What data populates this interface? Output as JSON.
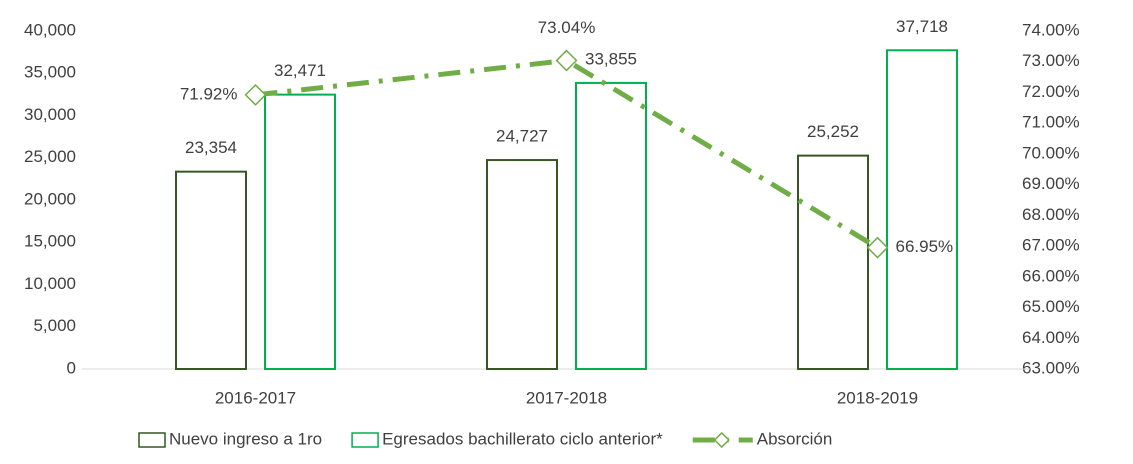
{
  "chart_data": {
    "type": "bar_line",
    "categories": [
      "2016-2017",
      "2017-2018",
      "2018-2019"
    ],
    "series": [
      {
        "name": "Nuevo ingreso a 1ro",
        "color": "#375623",
        "values": [
          23354,
          24727,
          25252
        ],
        "value_labels": [
          "23,354",
          "24,727",
          "25,252"
        ]
      },
      {
        "name": "Egresados bachillerato ciclo anterior*",
        "color": "#00b050",
        "values": [
          32471,
          33855,
          37718
        ],
        "value_labels": [
          "32,471",
          "33,855",
          "37,718"
        ]
      },
      {
        "name": "Absorción",
        "type": "line",
        "axis": "y2",
        "color": "#70ad47",
        "values": [
          71.92,
          73.04,
          66.95
        ],
        "value_labels": [
          "71.92%",
          "73.04%",
          "66.95%"
        ]
      }
    ],
    "ylim": [
      0,
      40000
    ],
    "yticks": [
      0,
      {
        "value": 5000,
        "label": "5,000"
      },
      {
        "value": 10000,
        "label": "10,000"
      },
      {
        "value": 15000,
        "label": "15,000"
      },
      {
        "value": 20000,
        "label": "20,000"
      },
      {
        "value": 25000,
        "label": "25,000"
      },
      {
        "value": 30000,
        "label": "30,000"
      },
      {
        "value": 35000,
        "label": "35,000"
      },
      {
        "value": 40000,
        "label": "40,000"
      }
    ],
    "y2lim": [
      63,
      74
    ],
    "y2ticks": [
      {
        "value": 63,
        "label": "63.00%"
      },
      {
        "value": 64,
        "label": "64.00%"
      },
      {
        "value": 65,
        "label": "65.00%"
      },
      {
        "value": 66,
        "label": "66.00%"
      },
      {
        "value": 67,
        "label": "67.00%"
      },
      {
        "value": 68,
        "label": "68.00%"
      },
      {
        "value": 69,
        "label": "69.00%"
      },
      {
        "value": 70,
        "label": "70.00%"
      },
      {
        "value": 71,
        "label": "71.00%"
      },
      {
        "value": 72,
        "label": "72.00%"
      },
      {
        "value": 73,
        "label": "73.00%"
      },
      {
        "value": 74,
        "label": "74.00%"
      }
    ],
    "legend": "bottom"
  }
}
